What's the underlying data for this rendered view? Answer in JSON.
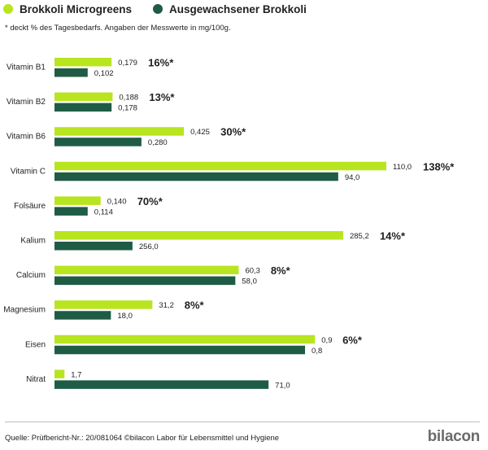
{
  "colors": {
    "micro": "#b8e51f",
    "adult": "#1f5c45"
  },
  "legend": [
    {
      "key": "micro",
      "label": "Brokkoli Microgreens"
    },
    {
      "key": "adult",
      "label": "Ausgewachsener Brokkoli"
    }
  ],
  "footnote": "* deckt % des Tagesbedarfs. Angaben der Messwerte in mg/100g.",
  "source": "Quelle: Prüfbericht-Nr.: 20/081064 ©bilacon Labor für Lebensmittel und Hygiene",
  "logo": "bilacon",
  "chart_data": {
    "type": "bar",
    "orientation": "horizontal",
    "title": "",
    "xlabel": "",
    "ylabel": "",
    "unit": "mg/100g",
    "categories": [
      "Vitamin B1",
      "Vitamin B2",
      "Vitamin B6",
      "Vitamin C",
      "Folsäure",
      "Kalium",
      "Calcium",
      "Magnesium",
      "Eisen",
      "Nitrat"
    ],
    "series": [
      {
        "name": "Brokkoli Microgreens",
        "values": [
          0.179,
          0.188,
          0.425,
          110.0,
          0.14,
          285.2,
          60.3,
          31.2,
          0.9,
          1.7
        ],
        "labels": [
          "0,179",
          "0,188",
          "0,425",
          "110,0",
          "0,140",
          "285,2",
          "60,3",
          "31,2",
          "0,9",
          "1,7"
        ],
        "bar_scale": [
          0.172,
          0.175,
          0.39,
          1.0,
          0.139,
          0.87,
          0.555,
          0.295,
          0.785,
          0.03
        ]
      },
      {
        "name": "Ausgewachsener Brokkoli",
        "values": [
          0.102,
          0.178,
          0.28,
          94.0,
          0.114,
          256.0,
          58.0,
          18.0,
          0.8,
          71.0
        ],
        "labels": [
          "0,102",
          "0,178",
          "0,280",
          "94,0",
          "0,114",
          "256,0",
          "58,0",
          "18,0",
          "0,8",
          "71,0"
        ],
        "bar_scale": [
          0.1,
          0.172,
          0.262,
          0.855,
          0.1,
          0.235,
          0.545,
          0.17,
          0.755,
          0.645
        ]
      }
    ],
    "daily_value_percent": [
      "16%*",
      "13%*",
      "30%*",
      "138%*",
      "70%*",
      "14%*",
      "8%*",
      "8%*",
      "6%*",
      ""
    ]
  }
}
